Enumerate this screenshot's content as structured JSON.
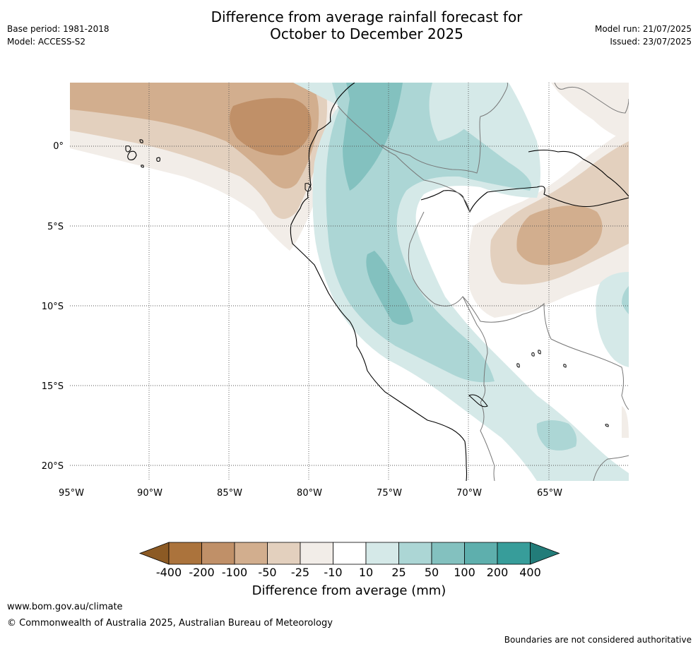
{
  "header": {
    "title_line1": "Difference from average rainfall forecast for",
    "title_line2": "October to December 2025",
    "base_period": "Base period: 1981-2018",
    "model": "Model: ACCESS-S2",
    "model_run": "Model run: 21/07/2025",
    "issued": "Issued: 23/07/2025"
  },
  "map": {
    "longitude_labels": [
      "95°W",
      "90°W",
      "85°W",
      "80°W",
      "75°W",
      "70°W",
      "65°W"
    ],
    "latitude_labels": [
      "0°",
      "5°S",
      "10°S",
      "15°S",
      "20°S"
    ],
    "extent": {
      "lon_min": -95,
      "lon_max": -60,
      "lat_min": -21,
      "lat_max": 4
    }
  },
  "colorbar": {
    "title": "Difference from average (mm)",
    "ticks": [
      "-400",
      "-200",
      "-100",
      "-50",
      "-25",
      "-10",
      "10",
      "25",
      "50",
      "100",
      "200",
      "400"
    ],
    "colors": [
      "#8c5a24",
      "#ab733c",
      "#c09068",
      "#d2ae8e",
      "#e3d0be",
      "#f2ede8",
      "#ffffff",
      "#d5e9e8",
      "#acd6d5",
      "#83c1bf",
      "#5eafad",
      "#379d9a",
      "#227c79"
    ]
  },
  "footer": {
    "url": "www.bom.gov.au/climate",
    "copyright": "© Commonwealth of Australia 2025, Australian Bureau of Meteorology",
    "note": "Boundaries are not considered authoritative"
  }
}
